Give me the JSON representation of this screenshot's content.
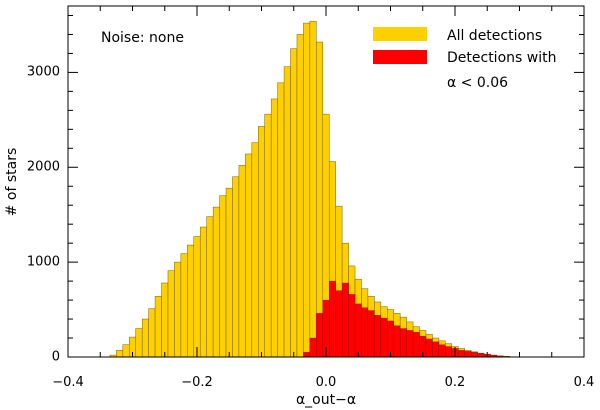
{
  "chart_data": {
    "type": "bar",
    "xlabel": "α_out−α",
    "ylabel": "# of stars",
    "xlim": [
      -0.4,
      0.4
    ],
    "ylim": [
      0,
      3700
    ],
    "x_ticks": [
      "−0.4",
      "−0.2",
      "0.0",
      "0.2",
      "0.4"
    ],
    "y_ticks": [
      "0",
      "1000",
      "2000",
      "3000"
    ],
    "annotation": "Noise: none",
    "legend": {
      "placement": "top-right",
      "entries": [
        {
          "label": "All detections",
          "color": "#FFD000"
        },
        {
          "label_line1": "Detections with",
          "label_line2": "α < 0.06",
          "color": "#FF0000"
        }
      ]
    },
    "bin_width": 0.01,
    "series": [
      {
        "name": "All detections",
        "color": "#FFD000",
        "bins": [
          {
            "x": -0.33,
            "y": 20
          },
          {
            "x": -0.32,
            "y": 70
          },
          {
            "x": -0.31,
            "y": 130
          },
          {
            "x": -0.3,
            "y": 210
          },
          {
            "x": -0.29,
            "y": 300
          },
          {
            "x": -0.28,
            "y": 400
          },
          {
            "x": -0.27,
            "y": 510
          },
          {
            "x": -0.26,
            "y": 640
          },
          {
            "x": -0.25,
            "y": 780
          },
          {
            "x": -0.24,
            "y": 910
          },
          {
            "x": -0.23,
            "y": 1000
          },
          {
            "x": -0.22,
            "y": 1090
          },
          {
            "x": -0.21,
            "y": 1180
          },
          {
            "x": -0.2,
            "y": 1270
          },
          {
            "x": -0.19,
            "y": 1370
          },
          {
            "x": -0.18,
            "y": 1480
          },
          {
            "x": -0.17,
            "y": 1580
          },
          {
            "x": -0.16,
            "y": 1700
          },
          {
            "x": -0.15,
            "y": 1780
          },
          {
            "x": -0.14,
            "y": 1900
          },
          {
            "x": -0.13,
            "y": 2020
          },
          {
            "x": -0.12,
            "y": 2140
          },
          {
            "x": -0.11,
            "y": 2260
          },
          {
            "x": -0.1,
            "y": 2430
          },
          {
            "x": -0.09,
            "y": 2560
          },
          {
            "x": -0.08,
            "y": 2720
          },
          {
            "x": -0.07,
            "y": 2890
          },
          {
            "x": -0.06,
            "y": 3060
          },
          {
            "x": -0.05,
            "y": 3250
          },
          {
            "x": -0.04,
            "y": 3400
          },
          {
            "x": -0.03,
            "y": 3520
          },
          {
            "x": -0.02,
            "y": 3540
          },
          {
            "x": -0.01,
            "y": 3320
          },
          {
            "x": 0.0,
            "y": 2560
          },
          {
            "x": 0.01,
            "y": 2060
          },
          {
            "x": 0.02,
            "y": 1590
          },
          {
            "x": 0.03,
            "y": 1200
          },
          {
            "x": 0.04,
            "y": 960
          },
          {
            "x": 0.05,
            "y": 820
          },
          {
            "x": 0.06,
            "y": 720
          },
          {
            "x": 0.07,
            "y": 640
          },
          {
            "x": 0.08,
            "y": 580
          },
          {
            "x": 0.09,
            "y": 530
          },
          {
            "x": 0.1,
            "y": 500
          },
          {
            "x": 0.11,
            "y": 460
          },
          {
            "x": 0.12,
            "y": 420
          },
          {
            "x": 0.13,
            "y": 370
          },
          {
            "x": 0.14,
            "y": 320
          },
          {
            "x": 0.15,
            "y": 280
          },
          {
            "x": 0.16,
            "y": 240
          },
          {
            "x": 0.17,
            "y": 200
          },
          {
            "x": 0.18,
            "y": 170
          },
          {
            "x": 0.19,
            "y": 140
          },
          {
            "x": 0.2,
            "y": 110
          },
          {
            "x": 0.21,
            "y": 90
          },
          {
            "x": 0.22,
            "y": 70
          },
          {
            "x": 0.23,
            "y": 55
          },
          {
            "x": 0.24,
            "y": 40
          },
          {
            "x": 0.25,
            "y": 30
          },
          {
            "x": 0.26,
            "y": 20
          },
          {
            "x": 0.27,
            "y": 12
          },
          {
            "x": 0.28,
            "y": 8
          }
        ]
      },
      {
        "name": "Detections with α < 0.06",
        "color": "#FF0000",
        "bins": [
          {
            "x": -0.03,
            "y": 50
          },
          {
            "x": -0.02,
            "y": 200
          },
          {
            "x": -0.01,
            "y": 460
          },
          {
            "x": 0.0,
            "y": 600
          },
          {
            "x": 0.01,
            "y": 800
          },
          {
            "x": 0.02,
            "y": 700
          },
          {
            "x": 0.03,
            "y": 780
          },
          {
            "x": 0.04,
            "y": 660
          },
          {
            "x": 0.05,
            "y": 560
          },
          {
            "x": 0.06,
            "y": 520
          },
          {
            "x": 0.07,
            "y": 490
          },
          {
            "x": 0.08,
            "y": 440
          },
          {
            "x": 0.09,
            "y": 410
          },
          {
            "x": 0.1,
            "y": 380
          },
          {
            "x": 0.11,
            "y": 330
          },
          {
            "x": 0.12,
            "y": 300
          },
          {
            "x": 0.13,
            "y": 280
          },
          {
            "x": 0.14,
            "y": 260
          },
          {
            "x": 0.15,
            "y": 220
          },
          {
            "x": 0.16,
            "y": 190
          },
          {
            "x": 0.17,
            "y": 160
          },
          {
            "x": 0.18,
            "y": 130
          },
          {
            "x": 0.19,
            "y": 110
          },
          {
            "x": 0.2,
            "y": 90
          },
          {
            "x": 0.21,
            "y": 70
          },
          {
            "x": 0.22,
            "y": 60
          },
          {
            "x": 0.23,
            "y": 50
          },
          {
            "x": 0.24,
            "y": 40
          },
          {
            "x": 0.25,
            "y": 30
          },
          {
            "x": 0.26,
            "y": 20
          },
          {
            "x": 0.27,
            "y": 10
          }
        ]
      }
    ]
  }
}
